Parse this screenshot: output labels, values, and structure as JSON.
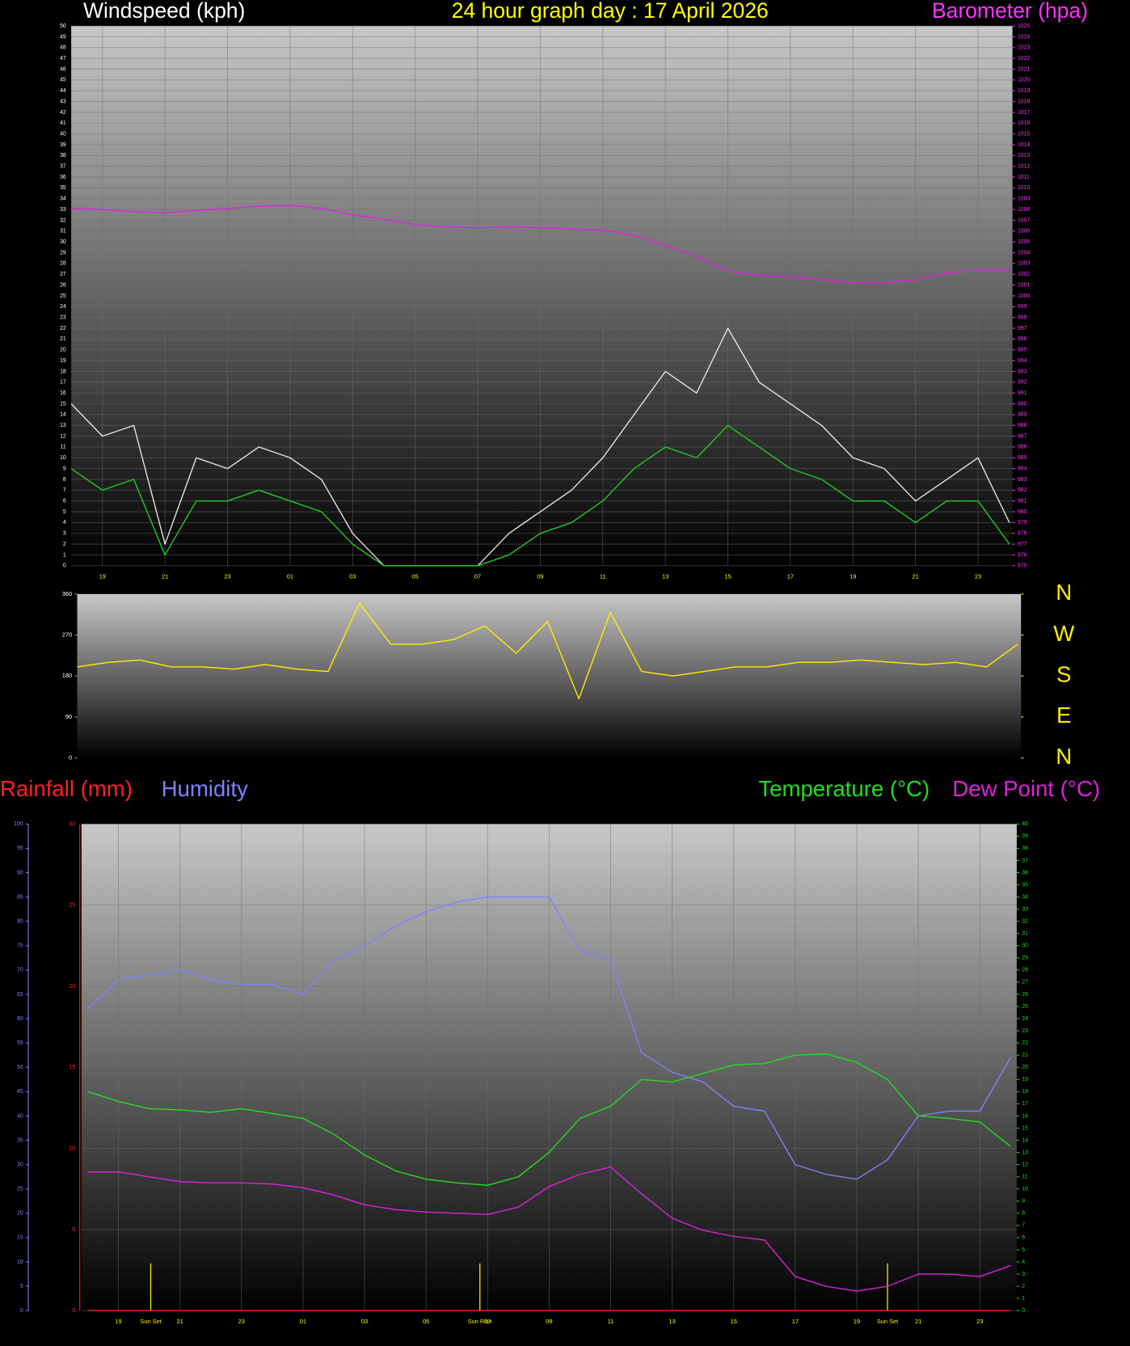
{
  "chart_data": [
    {
      "type": "line",
      "title": "24 hour graph day : 17 April 2026",
      "ylabel": "Windspeed (kph)",
      "y2label": "Barometer (hpa)",
      "x": [
        18,
        19,
        20,
        21,
        22,
        23,
        24,
        25,
        26,
        27,
        28,
        29,
        30,
        31,
        32,
        33,
        34,
        35,
        36,
        37,
        38,
        39,
        40,
        41,
        42,
        43,
        44,
        45,
        46,
        47,
        48
      ],
      "xlim": [
        18,
        48.1
      ],
      "xticks": [
        19,
        21,
        23,
        {
          "value": 25,
          "label": "01"
        },
        {
          "value": 27,
          "label": "03"
        },
        {
          "value": 29,
          "label": "05"
        },
        {
          "value": 31,
          "label": "07"
        },
        {
          "value": 33,
          "label": "09"
        },
        {
          "value": 35,
          "label": "11"
        },
        {
          "value": 37,
          "label": "13"
        },
        {
          "value": 39,
          "label": "15"
        },
        {
          "value": 41,
          "label": "17"
        },
        {
          "value": 43,
          "label": "19"
        },
        {
          "value": 45,
          "label": "21"
        },
        {
          "value": 47,
          "label": "23"
        }
      ],
      "ylim": [
        0,
        50
      ],
      "yticks": [
        0,
        1,
        2,
        3,
        4,
        5,
        6,
        7,
        8,
        9,
        10,
        11,
        12,
        13,
        14,
        15,
        16,
        17,
        18,
        19,
        20,
        21,
        22,
        23,
        24,
        25,
        26,
        27,
        28,
        29,
        30,
        31,
        32,
        33,
        34,
        35,
        36,
        37,
        38,
        39,
        40,
        41,
        42,
        43,
        44,
        45,
        46,
        47,
        48,
        49,
        50
      ],
      "y2lim": [
        975,
        1025
      ],
      "y2ticks": [
        975,
        976,
        977,
        978,
        979,
        980,
        981,
        982,
        983,
        984,
        985,
        986,
        987,
        988,
        989,
        990,
        991,
        992,
        993,
        994,
        995,
        996,
        997,
        998,
        999,
        1000,
        1001,
        1002,
        1003,
        1004,
        1005,
        1006,
        1007,
        1008,
        1009,
        1010,
        1011,
        1012,
        1013,
        1014,
        1015,
        1016,
        1017,
        1018,
        1019,
        1020,
        1021,
        1022,
        1023,
        1024,
        1025
      ],
      "y_color": "#ffffff",
      "y2_color": "#ff33ff",
      "x_color": "#ffff00",
      "grid": true,
      "series": [
        {
          "color": "#e6e6e6",
          "values": [
            15,
            12,
            13,
            2,
            10,
            9,
            11,
            10,
            8,
            3,
            0,
            0,
            0,
            0,
            3,
            5,
            7,
            10,
            14,
            18,
            16,
            22,
            17,
            15,
            13,
            10,
            9,
            6,
            8,
            10,
            4
          ]
        },
        {
          "color": "#22cc22",
          "values": [
            9,
            7,
            8,
            1,
            6,
            6,
            7,
            6,
            5,
            2,
            0,
            0,
            0,
            0,
            1,
            3,
            4,
            6,
            9,
            11,
            10,
            13,
            11,
            9,
            8,
            6,
            6,
            4,
            6,
            6,
            2
          ]
        },
        {
          "color": "#e020e0",
          "axis": "y2",
          "values": [
            1008.1,
            1008.0,
            1007.8,
            1007.7,
            1007.9,
            1008.1,
            1008.3,
            1008.4,
            1008.1,
            1007.5,
            1007.1,
            1006.6,
            1006.4,
            1006.3,
            1006.4,
            1006.3,
            1006.2,
            1006.1,
            1005.6,
            1004.7,
            1003.6,
            1002.3,
            1001.9,
            1001.8,
            1001.5,
            1001.2,
            1001.2,
            1001.5,
            1002.1,
            1002.4,
            1002.4
          ]
        }
      ]
    },
    {
      "type": "line",
      "x": [
        18,
        19,
        20,
        21,
        22,
        23,
        24,
        25,
        26,
        27,
        28,
        29,
        30,
        31,
        32,
        33,
        34,
        35,
        36,
        37,
        38,
        39,
        40,
        41,
        42,
        43,
        44,
        45,
        46,
        47,
        48
      ],
      "xlim": [
        18,
        48.1
      ],
      "ylim": [
        0,
        360
      ],
      "yticks": [
        0,
        90,
        180,
        270,
        360
      ],
      "y2lim": [
        0,
        360
      ],
      "y2ticks": [
        {
          "value": 0,
          "label": "N"
        },
        {
          "value": 90,
          "label": "E"
        },
        {
          "value": 180,
          "label": "S"
        },
        {
          "value": 270,
          "label": "W"
        },
        {
          "value": 360,
          "label": "N"
        }
      ],
      "y_color": "#ffffff",
      "y2_color": "#ffee00",
      "grid": false,
      "series": [
        {
          "color": "#ffee00",
          "values": [
            200,
            210,
            215,
            200,
            200,
            195,
            205,
            195,
            190,
            340,
            250,
            250,
            260,
            290,
            230,
            300,
            130,
            320,
            190,
            180,
            190,
            200,
            200,
            210,
            210,
            215,
            210,
            205,
            210,
            200,
            250
          ]
        }
      ]
    },
    {
      "type": "line",
      "x": [
        18,
        19,
        20,
        21,
        22,
        23,
        24,
        25,
        26,
        27,
        28,
        29,
        30,
        31,
        32,
        33,
        34,
        35,
        36,
        37,
        38,
        39,
        40,
        41,
        42,
        43,
        44,
        45,
        46,
        47,
        48
      ],
      "xlim": [
        17.8,
        48.2
      ],
      "xticks": [
        19,
        21,
        23,
        {
          "value": 25,
          "label": "01"
        },
        {
          "value": 27,
          "label": "03"
        },
        {
          "value": 29,
          "label": "05"
        },
        {
          "value": 31,
          "label": "07"
        },
        {
          "value": 33,
          "label": "09"
        },
        {
          "value": 35,
          "label": "11"
        },
        {
          "value": 37,
          "label": "13"
        },
        {
          "value": 39,
          "label": "15"
        },
        {
          "value": 41,
          "label": "17"
        },
        {
          "value": 43,
          "label": "19"
        },
        {
          "value": 45,
          "label": "21"
        },
        {
          "value": 47,
          "label": "23"
        }
      ],
      "ylim": [
        0,
        30
      ],
      "yticks": [
        0,
        5,
        10,
        15,
        20,
        25,
        30
      ],
      "y2lim": [
        0,
        40
      ],
      "y2ticks": [
        0,
        1,
        2,
        3,
        4,
        5,
        6,
        7,
        8,
        9,
        10,
        11,
        12,
        13,
        14,
        15,
        16,
        17,
        18,
        19,
        20,
        21,
        22,
        23,
        24,
        25,
        26,
        27,
        28,
        29,
        30,
        31,
        32,
        33,
        34,
        35,
        36,
        37,
        38,
        39,
        40
      ],
      "y3lim": [
        0,
        100
      ],
      "y3ticks": [
        0,
        5,
        10,
        15,
        20,
        25,
        30,
        35,
        40,
        45,
        50,
        55,
        60,
        65,
        70,
        75,
        80,
        85,
        90,
        95,
        100
      ],
      "y_color": "#ff2020",
      "y2_color": "#22dd22",
      "y3_color": "#8080ff",
      "x_color": "#ffff00",
      "grid": true,
      "annotations": [
        {
          "x": 20.05,
          "label": "Sun Set"
        },
        {
          "x": 30.75,
          "label": "Sun Rise"
        },
        {
          "x": 44.0,
          "label": "Sun Set"
        }
      ],
      "series": [
        {
          "name": "Rainfall (mm)",
          "color": "#ff2020",
          "values": [
            0,
            0,
            0,
            0,
            0,
            0,
            0,
            0,
            0,
            0,
            0,
            0,
            0,
            0,
            0,
            0,
            0,
            0,
            0,
            0,
            0,
            0,
            0,
            0,
            0,
            0,
            0,
            0,
            0,
            0,
            0
          ]
        },
        {
          "name": "Humidity",
          "color": "#8080ff",
          "axis": "y3",
          "values": [
            62,
            68,
            69,
            70,
            68,
            67,
            67,
            65,
            72,
            75,
            79,
            82,
            84,
            85,
            85,
            85,
            74,
            72,
            53,
            49,
            47,
            42,
            41,
            30,
            28,
            27,
            31,
            40,
            41,
            41,
            52
          ]
        },
        {
          "name": "Temperature (°C)",
          "color": "#22dd22",
          "axis": "y2",
          "values": [
            18.0,
            17.2,
            16.6,
            16.5,
            16.3,
            16.6,
            16.2,
            15.8,
            14.5,
            12.8,
            11.5,
            10.8,
            10.5,
            10.3,
            11.0,
            13.0,
            15.8,
            16.8,
            19.0,
            18.8,
            19.5,
            20.2,
            20.3,
            21.0,
            21.1,
            20.4,
            19.0,
            16.0,
            15.8,
            15.5,
            13.5
          ]
        },
        {
          "name": "Dew Point (°C)",
          "color": "#dd22dd",
          "axis": "y2",
          "values": [
            11.4,
            11.4,
            11.0,
            10.6,
            10.5,
            10.5,
            10.4,
            10.1,
            9.5,
            8.7,
            8.3,
            8.1,
            8.0,
            7.9,
            8.5,
            10.2,
            11.2,
            11.8,
            9.6,
            7.6,
            6.6,
            6.1,
            5.8,
            2.8,
            2.0,
            1.6,
            2.0,
            3.0,
            3.0,
            2.8,
            3.7
          ]
        }
      ]
    }
  ]
}
